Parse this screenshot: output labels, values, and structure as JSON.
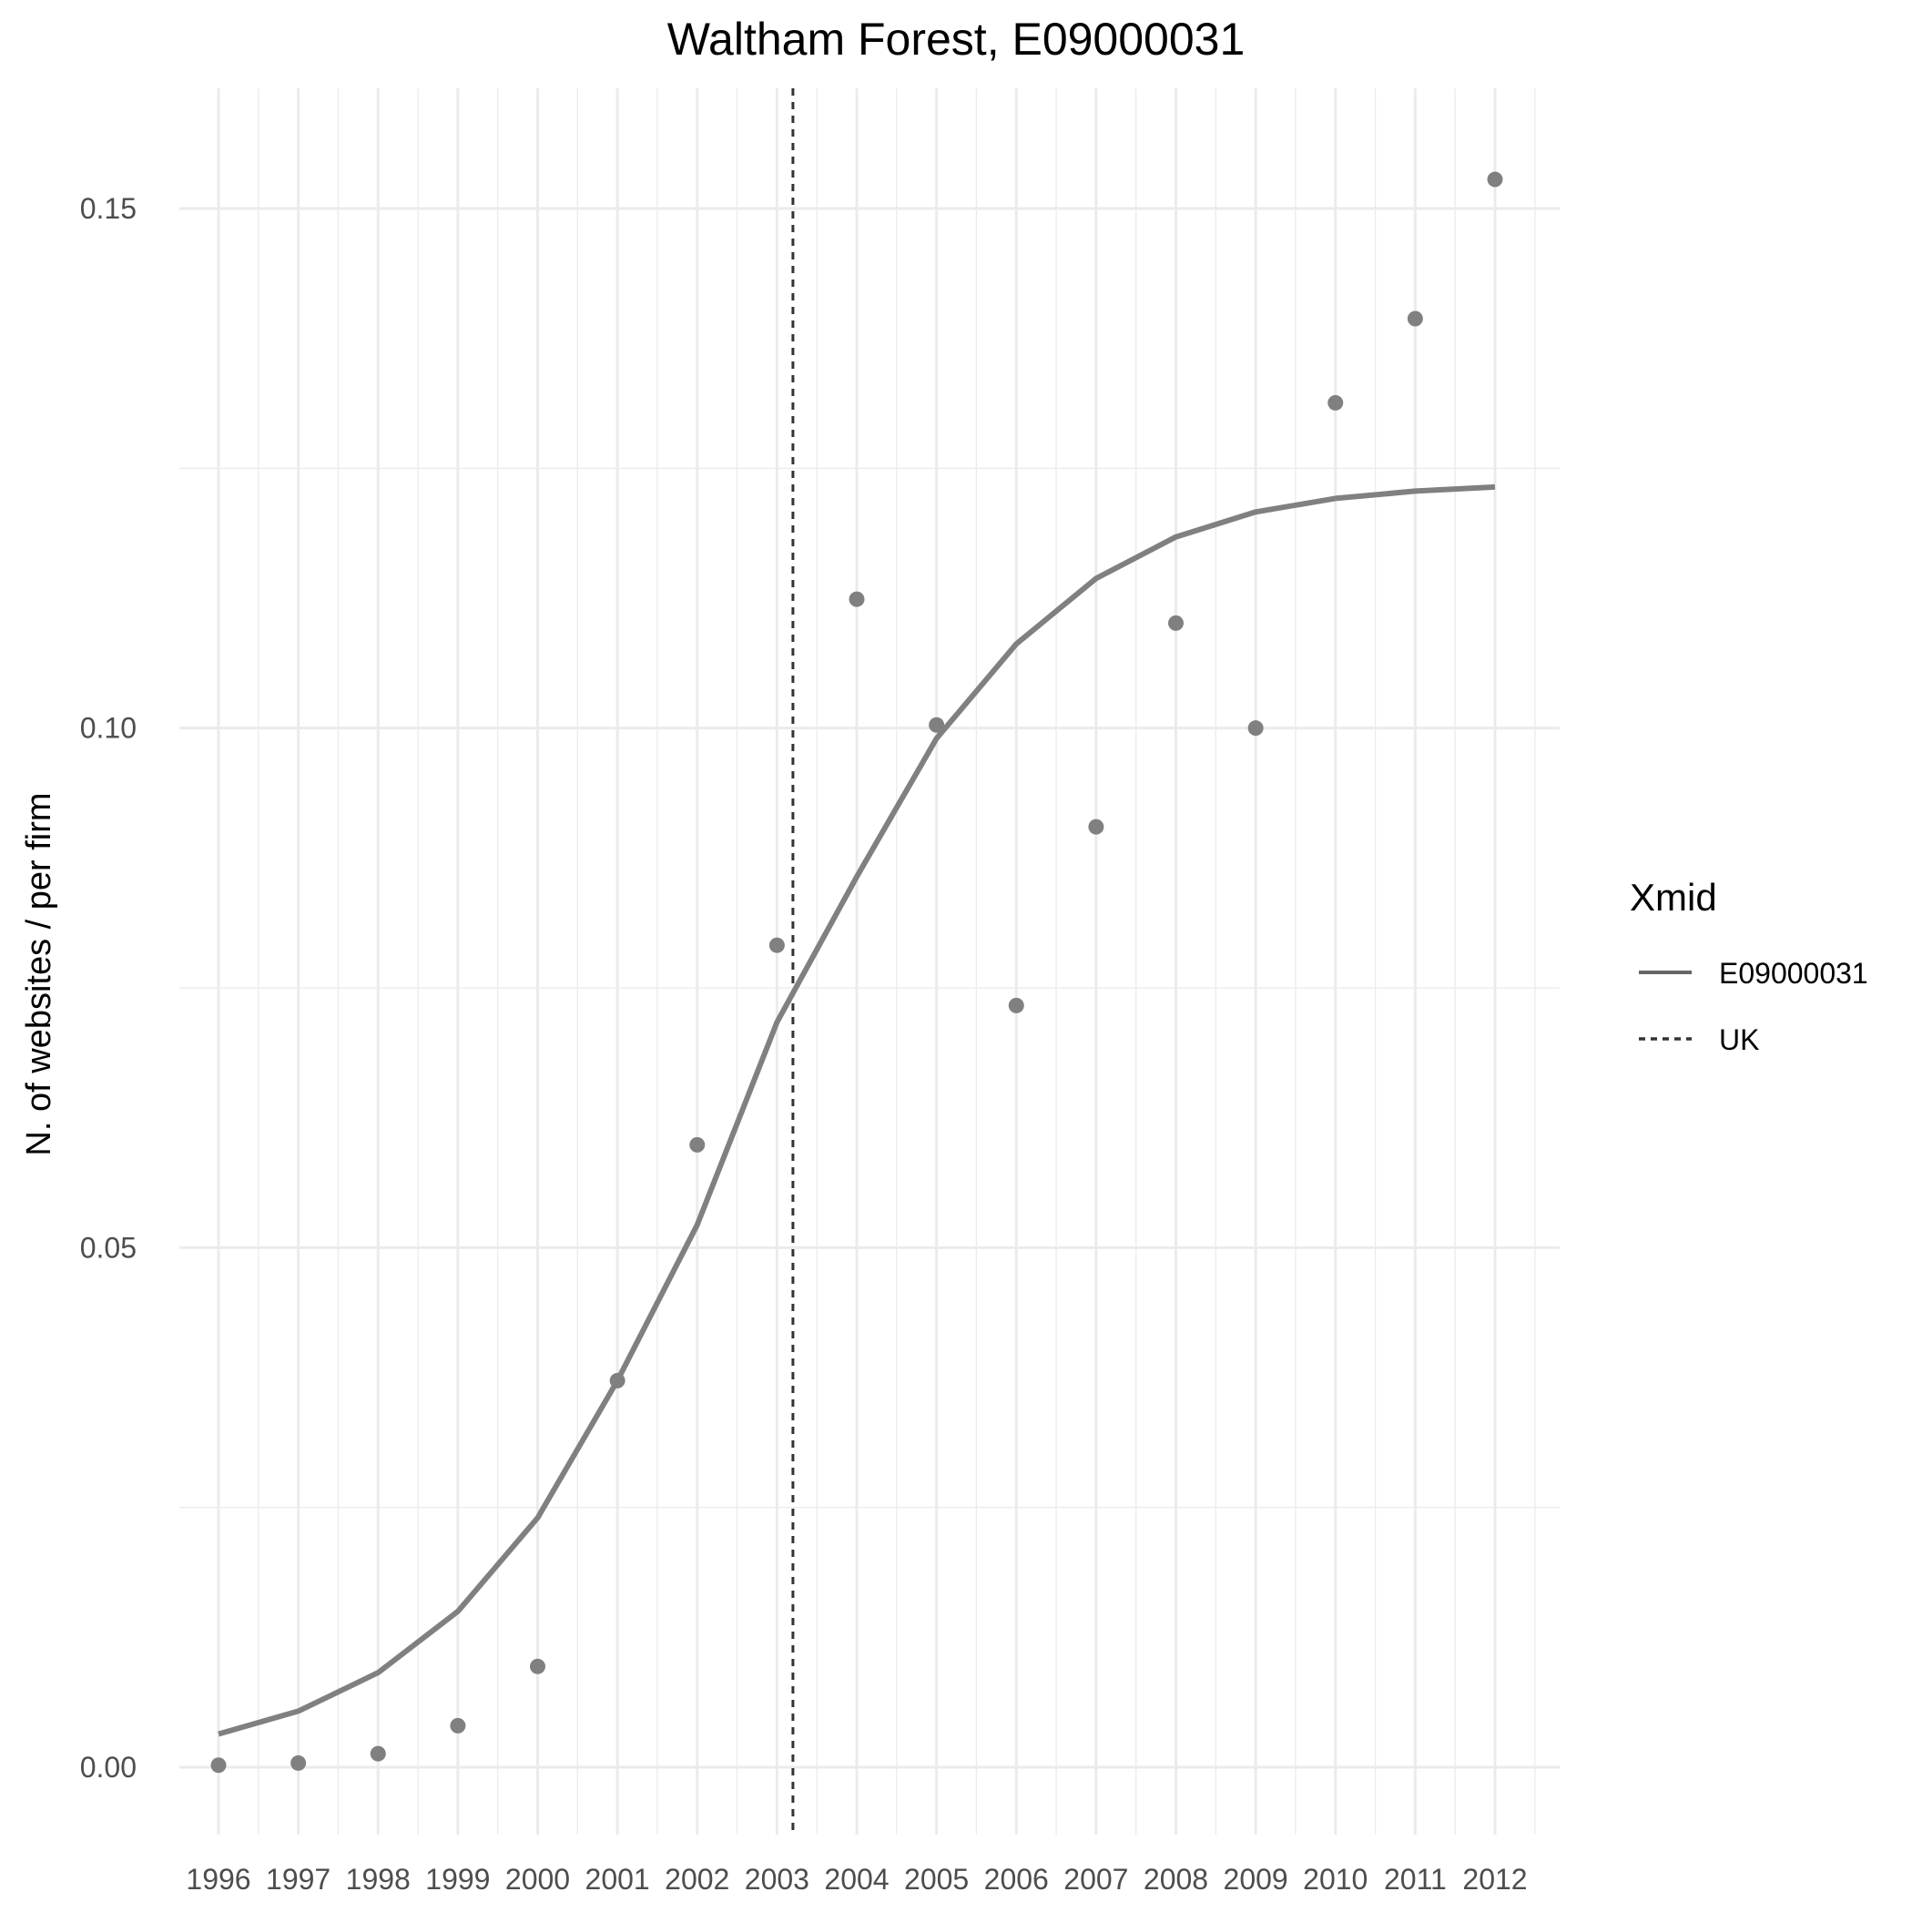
{
  "chart_data": {
    "type": "line",
    "title": "Waltham Forest, E09000031",
    "xlabel": "",
    "ylabel": "N. of websites / per firm",
    "x": [
      1996,
      1997,
      1998,
      1999,
      2000,
      2001,
      2002,
      2003,
      2004,
      2005,
      2006,
      2007,
      2008,
      2009,
      2010,
      2011,
      2012
    ],
    "x_tick_labels": [
      "1996",
      "1997",
      "1998",
      "1999",
      "2000",
      "2001",
      "2002",
      "2003",
      "2004",
      "2005",
      "2006",
      "2007",
      "2008",
      "2009",
      "2010",
      "2011",
      "2012"
    ],
    "y_tick_labels": [
      "0.00",
      "0.05",
      "0.10",
      "0.15"
    ],
    "y_ticks": [
      0.0,
      0.05,
      0.1,
      0.15
    ],
    "xlim": [
      1995.5,
      2012.55
    ],
    "ylim": [
      -0.005,
      0.162
    ],
    "grid": true,
    "series": [
      {
        "name": "E09000031",
        "type": "line",
        "line_style": "solid",
        "color": "#808080",
        "values": [
          0.0032,
          0.0054,
          0.0091,
          0.015,
          0.024,
          0.0372,
          0.0522,
          0.0717,
          0.0857,
          0.099,
          0.1081,
          0.1144,
          0.1184,
          0.1208,
          0.1221,
          0.1228,
          0.1232
        ]
      },
      {
        "type": "scatter",
        "color": "#808080",
        "values": [
          0.0002,
          0.0004,
          0.0013,
          0.004,
          0.0097,
          0.0372,
          0.0599,
          0.0791,
          0.1124,
          0.1003,
          0.0733,
          0.0905,
          0.1101,
          0.1,
          0.1313,
          0.1394,
          0.1528
        ]
      }
    ],
    "vline": {
      "name": "UK",
      "x": 2003.2,
      "line_style": "dashed",
      "color": "#333333"
    },
    "legend": {
      "title": "Xmid",
      "position": "right",
      "entries": [
        {
          "label": "E09000031",
          "line_style": "solid",
          "color": "#666666"
        },
        {
          "label": "UK",
          "line_style": "dashed",
          "color": "#333333"
        }
      ]
    }
  }
}
